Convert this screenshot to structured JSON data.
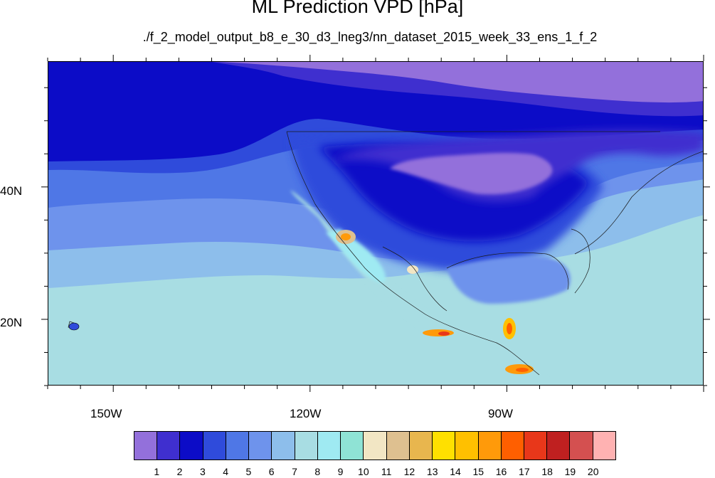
{
  "title": "ML Prediction VPD [hPa]",
  "subtitle": "./f_2_model_output_b8_e_30_d3_lneg3/nn_dataset_2015_week_33_ens_1_f_2",
  "map": {
    "region": "North America / Eastern Pacific",
    "lon_range": [
      -160,
      -60
    ],
    "lat_range": [
      10,
      59
    ],
    "lon_ticks": [
      {
        "label": "150W",
        "lon": -150
      },
      {
        "label": "120W",
        "lon": -120
      },
      {
        "label": "90W",
        "lon": -90
      }
    ],
    "lat_ticks": [
      {
        "label": "40N",
        "lat": 40
      },
      {
        "label": "20N",
        "lat": 20
      }
    ]
  },
  "colorbar": {
    "units": "hPa",
    "labels": [
      "1",
      "2",
      "3",
      "4",
      "5",
      "6",
      "7",
      "8",
      "9",
      "10",
      "11",
      "12",
      "13",
      "14",
      "15",
      "16",
      "17",
      "18",
      "19",
      "20"
    ],
    "colors": [
      "#9370DB",
      "#3F2FCF",
      "#0C0CC7",
      "#2F4BDB",
      "#4F77E6",
      "#6E93EC",
      "#8DBEEB",
      "#A8DDE3",
      "#9FEAF2",
      "#8FE3D5",
      "#F2E6C4",
      "#DEC090",
      "#E8B64E",
      "#FFE000",
      "#FFC000",
      "#FF9A0A",
      "#FF5F00",
      "#E8371A",
      "#BF2020",
      "#D45050",
      "#FFB2B2"
    ]
  }
}
